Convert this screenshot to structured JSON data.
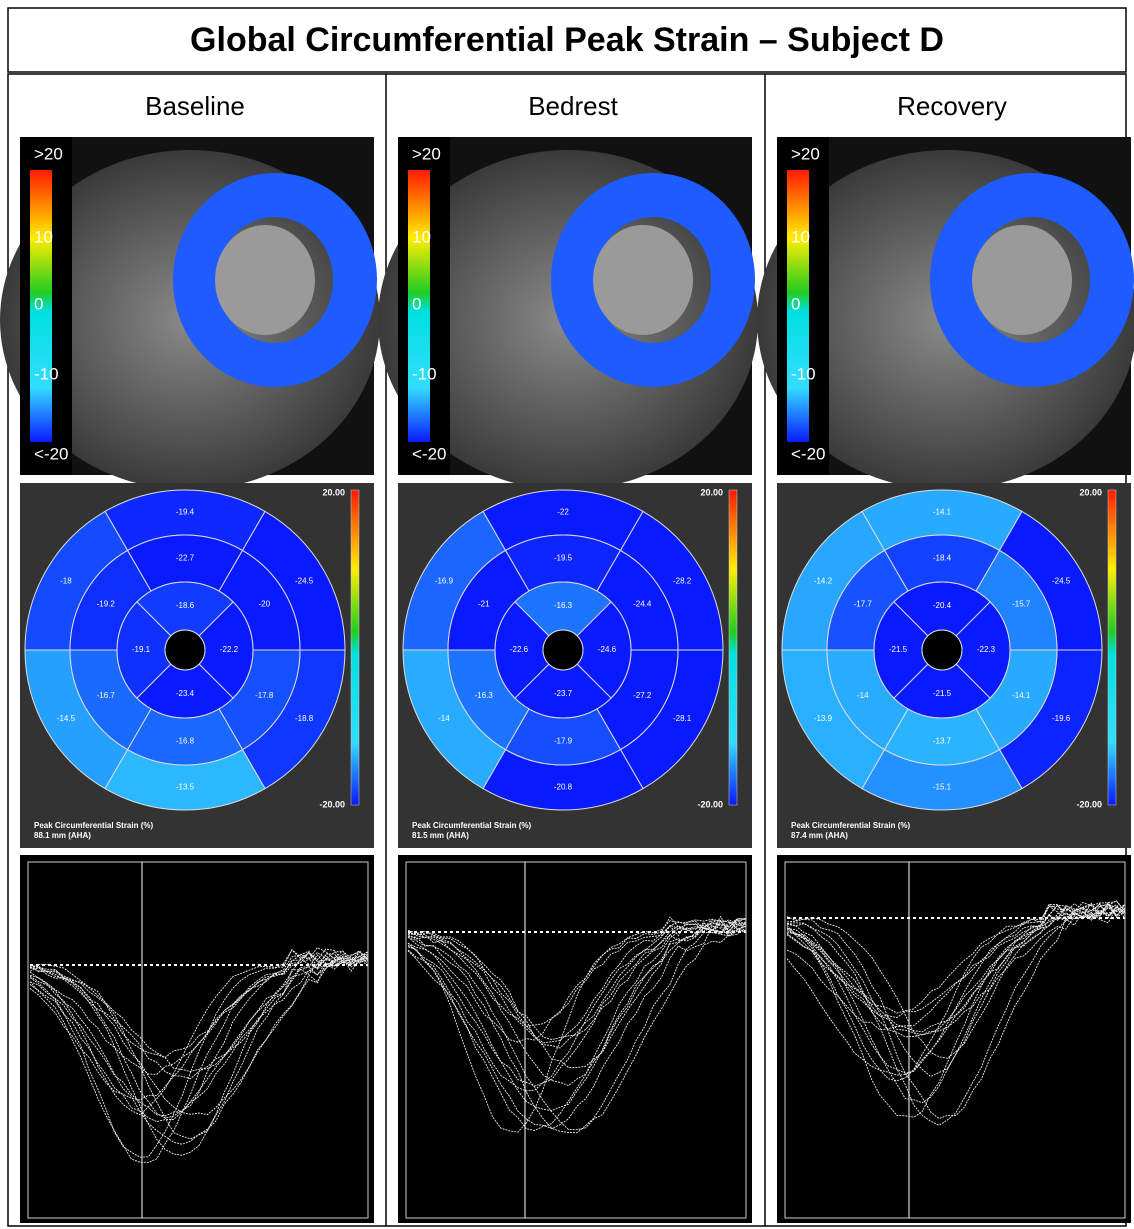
{
  "title": "Global Circumferential Peak Strain – Subject D",
  "panels": [
    {
      "label": "Baseline",
      "colorbar_labels": [
        ">20",
        "10",
        "0",
        "-10",
        "<-20"
      ],
      "bullseye": {
        "basal": [
          -19.4,
          -24.5,
          -18.8,
          -13.5,
          -14.5,
          -18.0
        ],
        "mid": [
          -22.7,
          -20.0,
          -17.8,
          -16.8,
          -16.7,
          -19.2
        ],
        "apical": [
          -18.6,
          -22.2,
          -23.4,
          -19.1
        ],
        "scale": [
          {
            "value": 20,
            "label": "20.00"
          },
          {
            "value": -20,
            "label": "-20.00"
          }
        ],
        "caption": "Peak Circumferential Strain (%)",
        "subcaption": "88.1 mm (AHA)"
      }
    },
    {
      "label": "Bedrest",
      "colorbar_labels": [
        ">20",
        "10",
        "0",
        "-10",
        "<-20"
      ],
      "bullseye": {
        "basal": [
          -22.0,
          -28.2,
          -28.1,
          -20.8,
          -14.0,
          -16.9
        ],
        "mid": [
          -19.5,
          -24.4,
          -27.2,
          -17.9,
          -16.3,
          -21.0
        ],
        "apical": [
          -16.3,
          -24.6,
          -23.7,
          -22.6
        ],
        "scale": [
          {
            "value": 20,
            "label": "20.00"
          },
          {
            "value": -20,
            "label": "-20.00"
          }
        ],
        "caption": "Peak Circumferential Strain (%)",
        "subcaption": "81.5 mm (AHA)"
      }
    },
    {
      "label": "Recovery",
      "colorbar_labels": [
        ">20",
        "10",
        "0",
        "-10",
        "<-20"
      ],
      "bullseye": {
        "basal": [
          -14.1,
          -24.5,
          -19.6,
          -15.1,
          -13.9,
          -14.2
        ],
        "mid": [
          -18.4,
          -15.7,
          -14.1,
          -13.7,
          -14.0,
          -17.7
        ],
        "apical": [
          -20.4,
          -22.3,
          -21.5,
          -21.5
        ],
        "scale": [
          {
            "value": 20,
            "label": "20.00"
          },
          {
            "value": -20,
            "label": "-20.00"
          }
        ],
        "caption": "Peak Circumferential Strain (%)",
        "subcaption": "87.4 mm (AHA)"
      }
    }
  ]
}
